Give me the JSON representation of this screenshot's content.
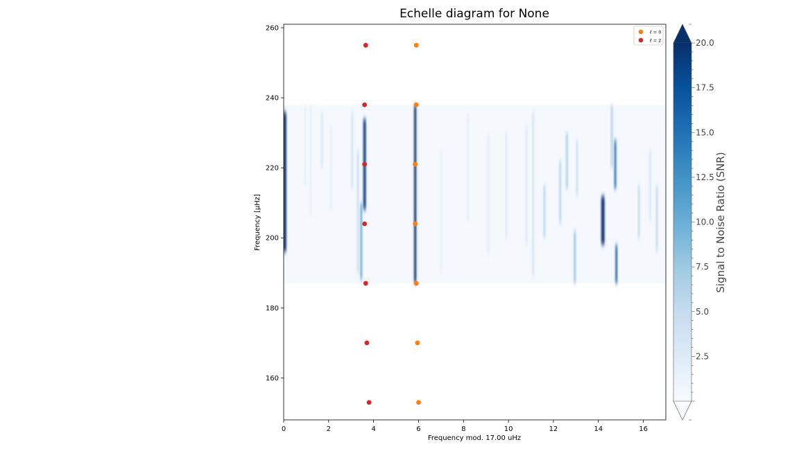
{
  "chart_data": {
    "type": "scatter",
    "title": "Echelle diagram for None",
    "xlabel": "Frequency mod. 17.00 uHz",
    "ylabel": "Frequency [µHz]",
    "xlim": [
      0,
      17
    ],
    "ylim": [
      148,
      261
    ],
    "xticks": [
      0,
      2,
      4,
      6,
      8,
      10,
      12,
      14,
      16
    ],
    "yticks": [
      160,
      180,
      200,
      220,
      240,
      260
    ],
    "legend_position": "top-right",
    "background": {
      "type": "heatmap",
      "colormap": "Blues",
      "y_range": [
        187,
        238
      ],
      "ridges": [
        {
          "x": 0.05,
          "y": [
            196,
            236
          ],
          "strength": 1.0,
          "width": 0.14
        },
        {
          "x": 0.95,
          "y": [
            215,
            238
          ],
          "strength": 0.12,
          "width": 0.06
        },
        {
          "x": 1.2,
          "y": [
            206,
            238
          ],
          "strength": 0.12,
          "width": 0.06
        },
        {
          "x": 1.7,
          "y": [
            220,
            236
          ],
          "strength": 0.2,
          "width": 0.07
        },
        {
          "x": 2.1,
          "y": [
            208,
            232
          ],
          "strength": 0.12,
          "width": 0.07
        },
        {
          "x": 3.05,
          "y": [
            214,
            236
          ],
          "strength": 0.22,
          "width": 0.08
        },
        {
          "x": 3.3,
          "y": [
            190,
            225
          ],
          "strength": 0.25,
          "width": 0.08
        },
        {
          "x": 3.6,
          "y": [
            208,
            234
          ],
          "strength": 0.95,
          "width": 0.12
        },
        {
          "x": 3.45,
          "y": [
            188,
            210
          ],
          "strength": 0.55,
          "width": 0.08
        },
        {
          "x": 5.85,
          "y": [
            187,
            238
          ],
          "strength": 1.0,
          "width": 0.1
        },
        {
          "x": 7.0,
          "y": [
            190,
            225
          ],
          "strength": 0.1,
          "width": 0.08
        },
        {
          "x": 8.2,
          "y": [
            205,
            235
          ],
          "strength": 0.12,
          "width": 0.08
        },
        {
          "x": 9.1,
          "y": [
            195,
            230
          ],
          "strength": 0.12,
          "width": 0.08
        },
        {
          "x": 9.9,
          "y": [
            200,
            230
          ],
          "strength": 0.15,
          "width": 0.08
        },
        {
          "x": 10.8,
          "y": [
            198,
            232
          ],
          "strength": 0.15,
          "width": 0.08
        },
        {
          "x": 11.1,
          "y": [
            189,
            236
          ],
          "strength": 0.25,
          "width": 0.06
        },
        {
          "x": 11.6,
          "y": [
            200,
            215
          ],
          "strength": 0.35,
          "width": 0.07
        },
        {
          "x": 12.3,
          "y": [
            204,
            222
          ],
          "strength": 0.35,
          "width": 0.07
        },
        {
          "x": 12.6,
          "y": [
            214,
            230
          ],
          "strength": 0.4,
          "width": 0.07
        },
        {
          "x": 12.95,
          "y": [
            187,
            202
          ],
          "strength": 0.5,
          "width": 0.06
        },
        {
          "x": 13.05,
          "y": [
            212,
            228
          ],
          "strength": 0.3,
          "width": 0.06
        },
        {
          "x": 14.2,
          "y": [
            198,
            212
          ],
          "strength": 1.0,
          "width": 0.15
        },
        {
          "x": 14.6,
          "y": [
            220,
            238
          ],
          "strength": 0.3,
          "width": 0.1
        },
        {
          "x": 14.75,
          "y": [
            214,
            228
          ],
          "strength": 0.75,
          "width": 0.09
        },
        {
          "x": 14.8,
          "y": [
            187,
            198
          ],
          "strength": 0.9,
          "width": 0.08
        },
        {
          "x": 15.8,
          "y": [
            200,
            215
          ],
          "strength": 0.3,
          "width": 0.07
        },
        {
          "x": 16.3,
          "y": [
            205,
            225
          ],
          "strength": 0.2,
          "width": 0.07
        },
        {
          "x": 16.6,
          "y": [
            196,
            215
          ],
          "strength": 0.3,
          "width": 0.07
        }
      ]
    },
    "series": [
      {
        "name": "ℓ = 0",
        "color": "#ff7f0e",
        "x": [
          6.0,
          5.95,
          5.9,
          5.85,
          5.85,
          5.9,
          5.9
        ],
        "y": [
          153,
          170,
          187,
          204,
          221,
          238,
          255
        ]
      },
      {
        "name": "ℓ = 2",
        "color": "#d62728",
        "x": [
          3.8,
          3.7,
          3.65,
          3.6,
          3.6,
          3.6,
          3.65
        ],
        "y": [
          153,
          170,
          187,
          204,
          221,
          238,
          255
        ]
      }
    ],
    "colorbar": {
      "label": "Signal to Noise Ratio (SNR)",
      "ticks": [
        2.5,
        5.0,
        7.5,
        10.0,
        12.5,
        15.0,
        17.5,
        20.0
      ],
      "tick_labels": [
        "2.5",
        "5.0",
        "7.5",
        "10.0",
        "12.5",
        "15.0",
        "17.5",
        "20.0"
      ],
      "range": [
        0,
        20
      ],
      "extend": "both"
    }
  }
}
